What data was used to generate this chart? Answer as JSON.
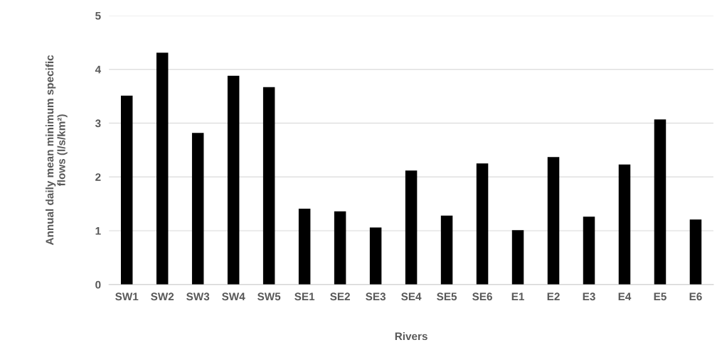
{
  "chart_data": {
    "type": "bar",
    "xlabel": "Rivers",
    "ylabel": "Annual daily mean minimum specific\nflows (l/s/km²)",
    "categories": [
      "SW1",
      "SW2",
      "SW3",
      "SW4",
      "SW5",
      "SE1",
      "SE2",
      "SE3",
      "SE4",
      "SE5",
      "SE6",
      "E1",
      "E2",
      "E3",
      "E4",
      "E5",
      "E6"
    ],
    "values": [
      3.51,
      4.31,
      2.82,
      3.88,
      3.67,
      1.41,
      1.36,
      1.06,
      2.12,
      1.28,
      2.25,
      1.01,
      2.37,
      1.26,
      2.23,
      3.07,
      1.21
    ],
    "color": "#000000",
    "ylim": [
      0,
      5
    ],
    "yticks": [
      0,
      1,
      2,
      3,
      4,
      5
    ],
    "grid": "y"
  }
}
